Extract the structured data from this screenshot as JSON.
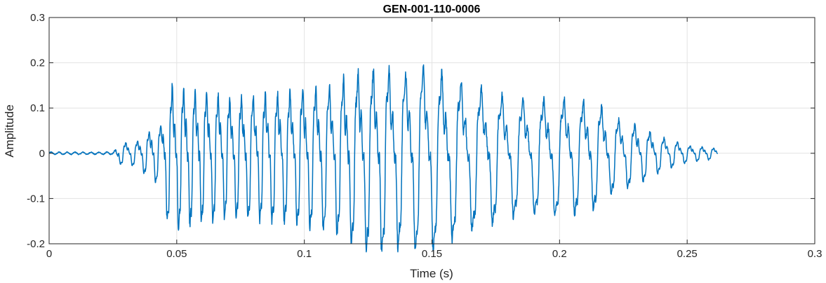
{
  "chart_data": {
    "type": "line",
    "title": "GEN-001-110-0006",
    "xlabel": "Time (s)",
    "ylabel": "Amplitude",
    "xlim": [
      0,
      0.3
    ],
    "ylim": [
      -0.2,
      0.3
    ],
    "xticks": [
      0,
      0.05,
      0.1,
      0.15,
      0.2,
      0.25,
      0.3
    ],
    "xtick_labels": [
      "0",
      "0.05",
      "0.1",
      "0.15",
      "0.2",
      "0.25",
      "0.3"
    ],
    "yticks": [
      -0.2,
      -0.1,
      0,
      0.1,
      0.2,
      0.3
    ],
    "ytick_labels": [
      "-0.2",
      "-0.1",
      "0",
      "0.1",
      "0.2",
      "0.3"
    ],
    "grid": true,
    "legend": "none",
    "line_color": "#0072BD",
    "signal_end": 0.262,
    "envelope": {
      "t": [
        0,
        0.025,
        0.028,
        0.035,
        0.04,
        0.044,
        0.047,
        0.055,
        0.07,
        0.09,
        0.11,
        0.12,
        0.13,
        0.14,
        0.147,
        0.16,
        0.18,
        0.19,
        0.2,
        0.21,
        0.216,
        0.22,
        0.23,
        0.24,
        0.25,
        0.262
      ],
      "amp": [
        0.004,
        0.004,
        0.025,
        0.03,
        0.06,
        0.07,
        0.17,
        0.16,
        0.14,
        0.15,
        0.17,
        0.2,
        0.22,
        0.2,
        0.22,
        0.18,
        0.14,
        0.13,
        0.14,
        0.13,
        0.12,
        0.09,
        0.07,
        0.04,
        0.02,
        0.012
      ]
    }
  }
}
